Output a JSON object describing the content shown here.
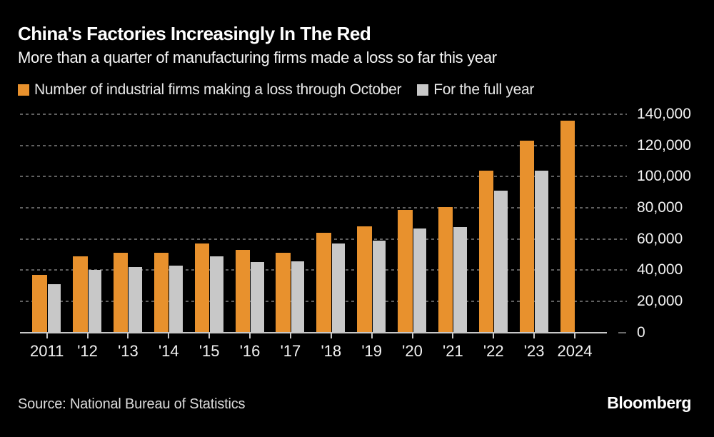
{
  "header": {
    "title": "China's Factories Increasingly In The Red",
    "subtitle": "More than a quarter of manufacturing firms made a loss so far this year"
  },
  "legend": {
    "items": [
      {
        "label": "Number of industrial firms making a loss through October",
        "color": "#E8912D"
      },
      {
        "label": "For the full year",
        "color": "#C8C8C8"
      }
    ]
  },
  "chart_data": {
    "type": "bar",
    "title": "China's Factories Increasingly In The Red",
    "subtitle": "More than a quarter of manufacturing firms made a loss so far this year",
    "categories": [
      "2011",
      "'12",
      "'13",
      "'14",
      "'15",
      "'16",
      "'17",
      "'18",
      "'19",
      "'20",
      "'21",
      "'22",
      "'23",
      "2024"
    ],
    "series": [
      {
        "name": "Number of industrial firms making a loss through October",
        "color": "#E8912D",
        "values": [
          37000,
          49000,
          51000,
          51000,
          57000,
          53000,
          51000,
          64000,
          68000,
          78500,
          80500,
          104000,
          123000,
          136000
        ]
      },
      {
        "name": "For the full year",
        "color": "#C8C8C8",
        "values": [
          31000,
          40000,
          42000,
          43000,
          49000,
          45000,
          45500,
          57000,
          59000,
          66500,
          67500,
          91000,
          104000,
          null
        ]
      }
    ],
    "xlabel": "",
    "ylabel": "",
    "ylim": [
      0,
      140000
    ],
    "ytick_interval": 20000,
    "ytick_labels": [
      "0",
      "20,000",
      "40,000",
      "60,000",
      "80,000",
      "100,000",
      "120,000",
      "140,000"
    ],
    "y_axis_side": "right",
    "grid": "horizontal-dashed",
    "legend_position": "top-left",
    "background": "#000000"
  },
  "footer": {
    "source": "Source: National Bureau of Statistics",
    "brand": "Bloomberg"
  }
}
